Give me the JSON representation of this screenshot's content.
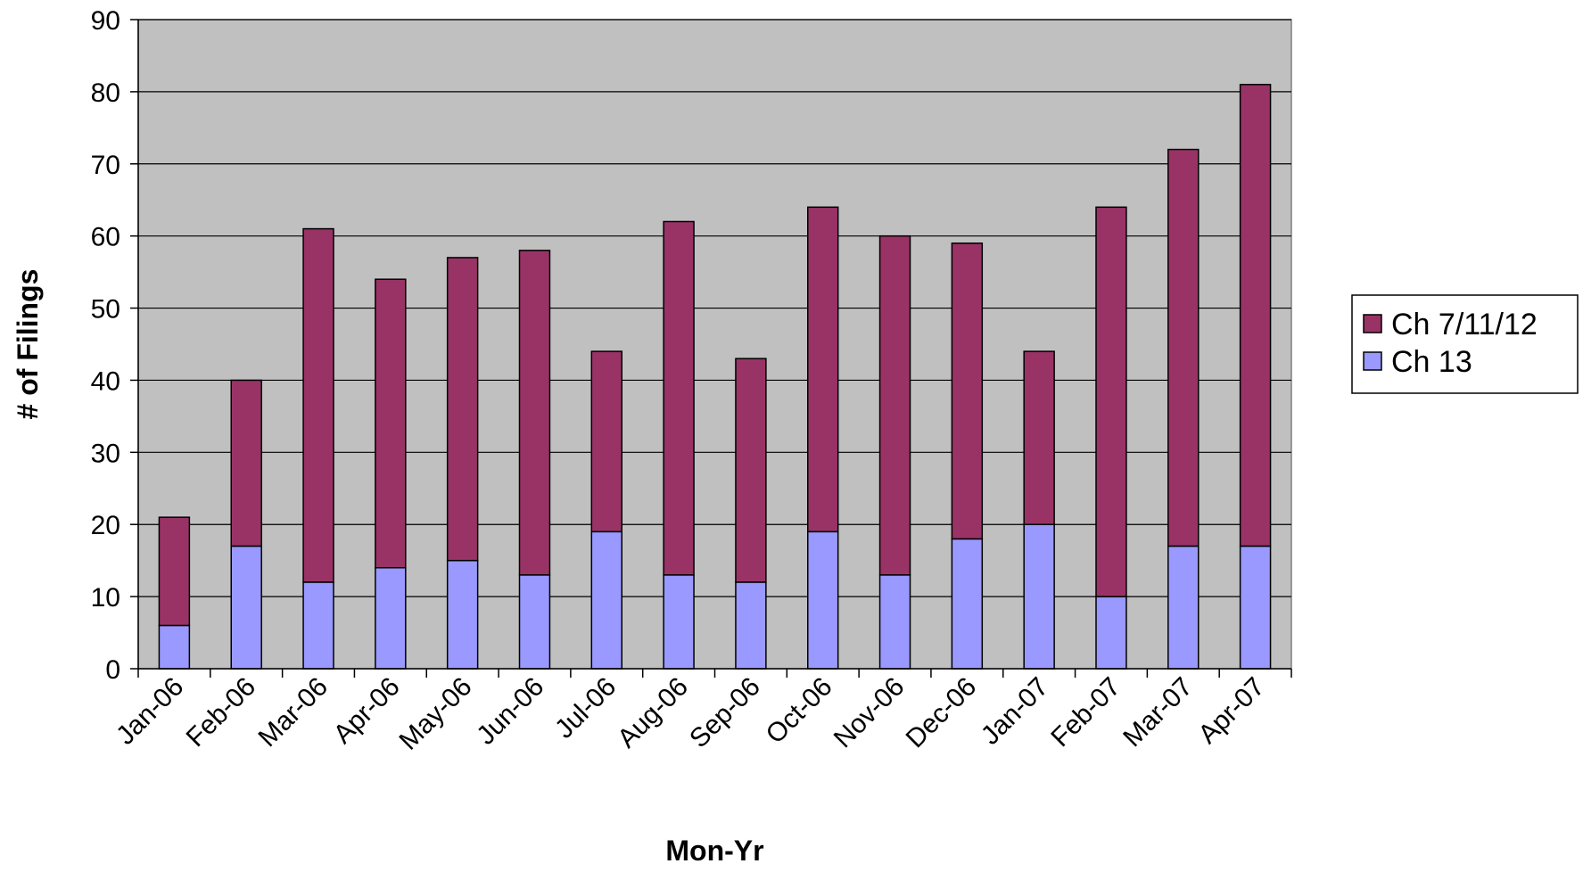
{
  "chart_data": {
    "type": "bar",
    "stacked": true,
    "title": "",
    "xlabel": "Mon-Yr",
    "ylabel": "# of Filings",
    "ylim": [
      0,
      90
    ],
    "yticks": [
      0,
      10,
      20,
      30,
      40,
      50,
      60,
      70,
      80,
      90
    ],
    "grid": true,
    "legend_position": "right",
    "categories": [
      "Jan-06",
      "Feb-06",
      "Mar-06",
      "Apr-06",
      "May-06",
      "Jun-06",
      "Jul-06",
      "Aug-06",
      "Sep-06",
      "Oct-06",
      "Nov-06",
      "Dec-06",
      "Jan-07",
      "Feb-07",
      "Mar-07",
      "Apr-07"
    ],
    "series": [
      {
        "name": "Ch 13",
        "color": "#9999ff",
        "values": [
          6,
          17,
          12,
          14,
          15,
          13,
          19,
          13,
          12,
          19,
          13,
          18,
          20,
          10,
          17,
          17
        ]
      },
      {
        "name": "Ch 7/11/12",
        "color": "#993366",
        "values": [
          15,
          23,
          49,
          40,
          42,
          45,
          25,
          49,
          31,
          45,
          47,
          41,
          24,
          54,
          55,
          64
        ]
      }
    ],
    "totals": [
      21,
      40,
      61,
      54,
      57,
      58,
      44,
      62,
      43,
      64,
      60,
      59,
      44,
      64,
      72,
      81
    ],
    "legend": [
      "Ch 7/11/12",
      "Ch 13"
    ],
    "plot_background": "#c0c0c0"
  }
}
